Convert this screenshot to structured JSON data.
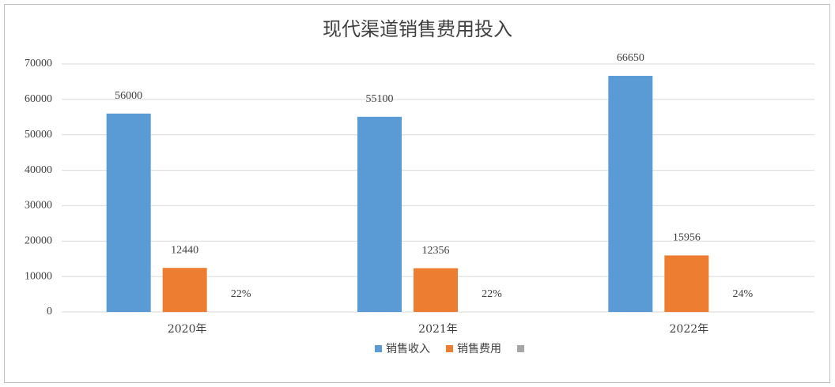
{
  "chart_data": {
    "type": "bar",
    "title": "现代渠道销售费用投入",
    "categories": [
      "2020年",
      "2021年",
      "2022年"
    ],
    "series": [
      {
        "name": "销售收入",
        "color": "#5b9bd5",
        "values": [
          56000,
          55100,
          66650
        ]
      },
      {
        "name": "销售费用",
        "color": "#ed7d31",
        "values": [
          12440,
          12356,
          15956
        ]
      },
      {
        "color": "#a5a5a5",
        "values": [
          0.22,
          0.22,
          0.24
        ],
        "value_labels": [
          "22%",
          "22%",
          "24%"
        ]
      }
    ],
    "ylim": [
      0,
      70000
    ],
    "yticks": [
      0,
      10000,
      20000,
      30000,
      40000,
      50000,
      60000,
      70000
    ],
    "grid": true,
    "legend": "bottom"
  }
}
